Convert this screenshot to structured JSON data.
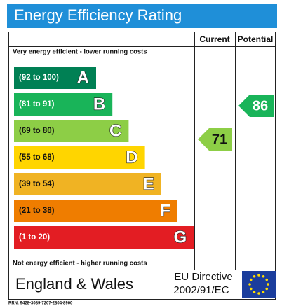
{
  "title": "Energy Efficiency Rating",
  "columns": {
    "current": "Current",
    "potential": "Potential"
  },
  "top_note": "Very energy efficient - lower running costs",
  "bottom_note": "Not energy efficient - higher running costs",
  "bands": [
    {
      "range": "(92 to 100)",
      "letter": "A"
    },
    {
      "range": "(81 to 91)",
      "letter": "B"
    },
    {
      "range": "(69 to 80)",
      "letter": "C"
    },
    {
      "range": "(55 to 68)",
      "letter": "D"
    },
    {
      "range": "(39 to 54)",
      "letter": "E"
    },
    {
      "range": "(21 to 38)",
      "letter": "F"
    },
    {
      "range": "(1 to 20)",
      "letter": "G"
    }
  ],
  "current_rating": "71",
  "potential_rating": "86",
  "footer": {
    "region": "England & Wales",
    "directive_line1": "EU Directive",
    "directive_line2": "2002/91/EC"
  },
  "rrn": "RRN: 9428-3089-7207-2804-8900"
}
